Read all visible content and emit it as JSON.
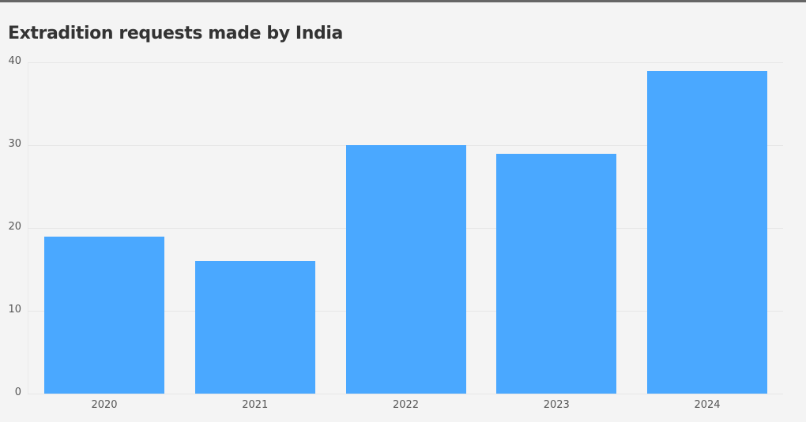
{
  "title": "Extradition requests made by India",
  "colors": {
    "bar": "#4aa8ff",
    "background": "#f4f4f4",
    "title": "#333333",
    "topbar": "#666666"
  },
  "chart_data": {
    "type": "bar",
    "title": "Extradition requests made by India",
    "xlabel": "",
    "ylabel": "",
    "categories": [
      "2020",
      "2021",
      "2022",
      "2023",
      "2024"
    ],
    "values": [
      19,
      16,
      30,
      29,
      39
    ],
    "ylim": [
      0,
      40
    ],
    "yticks": [
      "0",
      "10",
      "20",
      "30",
      "40"
    ],
    "grid": true,
    "legend": "none"
  }
}
